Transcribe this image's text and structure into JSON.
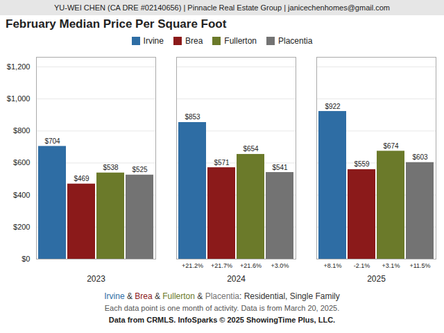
{
  "chart_data": {
    "type": "bar",
    "header": "YU-WEI CHEN (CA DRE #02140656) | Pinnacle Real Estate Group | janicechenhomes@gmail.com",
    "title": "February Median Price Per Square Foot",
    "categories": [
      "2023",
      "2024",
      "2025"
    ],
    "series": [
      {
        "name": "Irvine",
        "color": "#2E6DA4",
        "values": [
          704,
          853,
          922
        ],
        "value_labels": [
          "$704",
          "$853",
          "$922"
        ],
        "change_labels": [
          null,
          "+21.2%",
          "+8.1%"
        ]
      },
      {
        "name": "Brea",
        "color": "#8B1A1A",
        "values": [
          469,
          571,
          559
        ],
        "value_labels": [
          "$469",
          "$571",
          "$559"
        ],
        "change_labels": [
          null,
          "+21.7%",
          "-2.1%"
        ]
      },
      {
        "name": "Fullerton",
        "color": "#6B7A2A",
        "values": [
          538,
          654,
          674
        ],
        "value_labels": [
          "$538",
          "$654",
          "$674"
        ],
        "change_labels": [
          null,
          "+21.6%",
          "+3.1%"
        ]
      },
      {
        "name": "Placentia",
        "color": "#737373",
        "values": [
          525,
          541,
          603
        ],
        "value_labels": [
          "$525",
          "$541",
          "$603"
        ],
        "change_labels": [
          null,
          "+3.0%",
          "+11.5%"
        ]
      }
    ],
    "ylim": [
      0,
      1260
    ],
    "yticks": [
      {
        "value": 0,
        "label": "$0"
      },
      {
        "value": 200,
        "label": "$200"
      },
      {
        "value": 400,
        "label": "$400"
      },
      {
        "value": 600,
        "label": "$600"
      },
      {
        "value": 800,
        "label": "$800"
      },
      {
        "value": 1000,
        "label": "$1,000"
      },
      {
        "value": 1200,
        "label": "$1,200"
      }
    ],
    "grid": true,
    "legend": "top",
    "data_labels": true,
    "caption_parts": [
      {
        "text": "Irvine",
        "color": "#2E6DA4"
      },
      {
        "text": " & ",
        "color": "#333333"
      },
      {
        "text": "Brea",
        "color": "#8B1A1A"
      },
      {
        "text": " & ",
        "color": "#333333"
      },
      {
        "text": "Fullerton",
        "color": "#6B7A2A"
      },
      {
        "text": " & ",
        "color": "#333333"
      },
      {
        "text": "Placentia",
        "color": "#737373"
      },
      {
        "text": ": Residential, Single Family",
        "color": "#333333"
      }
    ],
    "notes": [
      "Each data point is one month of activity. Data is from March 20, 2025.",
      "Data from CRMLS. InfoSparks © 2025 ShowingTime Plus, LLC."
    ]
  }
}
